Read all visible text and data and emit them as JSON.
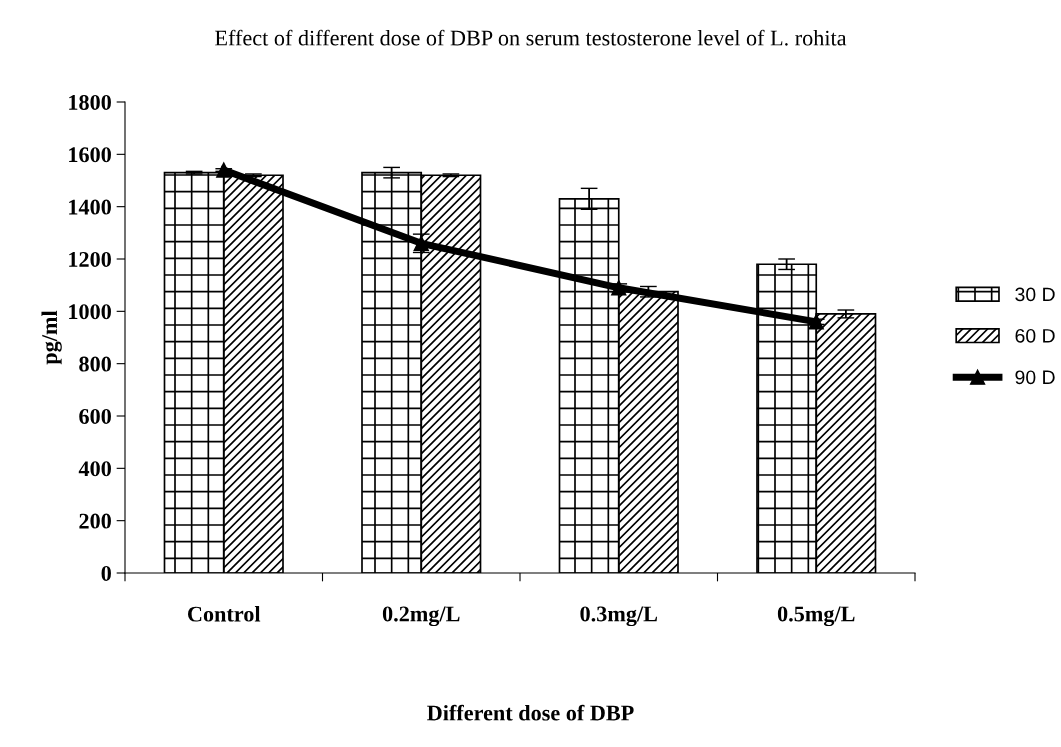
{
  "chart_data": {
    "type": "bar",
    "title": "Effect of different dose of DBP on serum testosterone level of L. rohita",
    "xlabel": "Different dose of DBP",
    "ylabel": "pg/ml",
    "categories": [
      "Control",
      "0.2mg/L",
      "0.3mg/L",
      "0.5mg/L"
    ],
    "series": [
      {
        "name": "30 D",
        "color": "#000000",
        "values": [
          1530,
          1530,
          1430,
          1180
        ],
        "errors": [
          5,
          20,
          40,
          20
        ]
      },
      {
        "name": "60 D",
        "color": "#000000",
        "values": [
          1520,
          1520,
          1075,
          990
        ],
        "errors": [
          5,
          5,
          20,
          15
        ]
      },
      {
        "name": "90 D",
        "type": "line",
        "color": "#000000",
        "marker": "triangle",
        "values": [
          1540,
          1260,
          1090,
          960
        ],
        "errors": [
          5,
          35,
          15,
          10
        ]
      }
    ],
    "ylim": [
      0,
      1800
    ],
    "yticks": [
      0,
      200,
      400,
      600,
      800,
      1000,
      1200,
      1400,
      1600,
      1800
    ],
    "grid": false,
    "legend": "right"
  }
}
